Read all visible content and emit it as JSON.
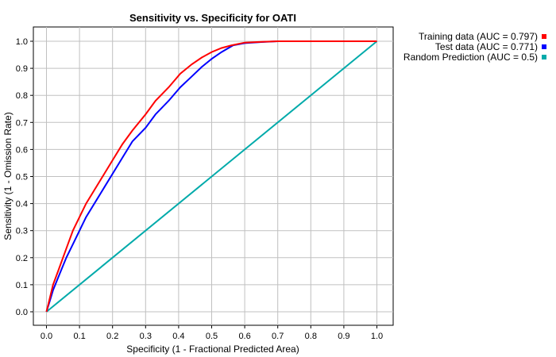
{
  "chart_data": {
    "type": "line",
    "title": "Sensitivity vs. Specificity for OATI",
    "xlabel": "Specificity  (1 - Fractional Predicted Area)",
    "ylabel": "Sensitivity  (1 - Omission Rate)",
    "xlim": [
      0,
      1
    ],
    "ylim": [
      0,
      1
    ],
    "xticks": [
      "0.0",
      "0.1",
      "0.2",
      "0.3",
      "0.4",
      "0.5",
      "0.6",
      "0.7",
      "0.8",
      "0.9",
      "1.0"
    ],
    "yticks": [
      "0.0",
      "0.1",
      "0.2",
      "0.3",
      "0.4",
      "0.5",
      "0.6",
      "0.7",
      "0.8",
      "0.9",
      "1.0"
    ],
    "grid": true,
    "legend_position": "right-top",
    "series": [
      {
        "name": "Training data (AUC = 0.797)",
        "color": "#ff0000",
        "x": [
          0,
          0.01,
          0.02,
          0.035,
          0.05,
          0.065,
          0.08,
          0.1,
          0.12,
          0.14,
          0.17,
          0.2,
          0.23,
          0.26,
          0.3,
          0.33,
          0.37,
          0.405,
          0.44,
          0.47,
          0.5,
          0.53,
          0.56,
          0.6,
          0.65,
          0.7,
          0.8,
          0.9,
          1.0
        ],
        "y": [
          0,
          0.05,
          0.1,
          0.15,
          0.2,
          0.25,
          0.3,
          0.35,
          0.4,
          0.44,
          0.5,
          0.56,
          0.62,
          0.67,
          0.73,
          0.78,
          0.83,
          0.88,
          0.915,
          0.94,
          0.96,
          0.975,
          0.985,
          0.995,
          0.998,
          1.0,
          1.0,
          1.0,
          1.0
        ]
      },
      {
        "name": "Test data (AUC = 0.771)",
        "color": "#0000ff",
        "x": [
          0,
          0.01,
          0.02,
          0.04,
          0.06,
          0.08,
          0.1,
          0.12,
          0.15,
          0.18,
          0.2,
          0.23,
          0.26,
          0.3,
          0.33,
          0.37,
          0.405,
          0.44,
          0.47,
          0.5,
          0.53,
          0.565,
          0.6,
          0.65,
          0.7,
          0.8,
          0.9,
          1.0
        ],
        "y": [
          0,
          0.04,
          0.08,
          0.14,
          0.2,
          0.25,
          0.3,
          0.35,
          0.41,
          0.47,
          0.51,
          0.57,
          0.63,
          0.68,
          0.73,
          0.78,
          0.83,
          0.87,
          0.905,
          0.935,
          0.96,
          0.985,
          0.993,
          0.997,
          1.0,
          1.0,
          1.0,
          1.0
        ]
      },
      {
        "name": "Random Prediction (AUC = 0.5)",
        "color": "#00aaaa",
        "x": [
          0,
          1
        ],
        "y": [
          0,
          1
        ]
      }
    ]
  }
}
